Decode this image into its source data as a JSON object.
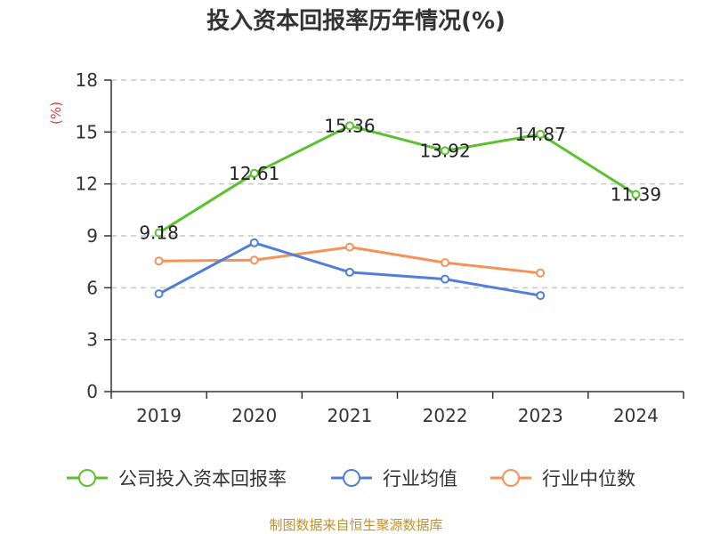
{
  "chart_data": {
    "type": "line",
    "title": "投入资本回报率历年情况(%)",
    "ylabel": "(%)",
    "xlabel": "",
    "categories": [
      "2019",
      "2020",
      "2021",
      "2022",
      "2023",
      "2024"
    ],
    "ylim": [
      0,
      18
    ],
    "yticks": [
      0,
      3,
      6,
      9,
      12,
      15,
      18
    ],
    "grid": true,
    "legend_position": "bottom",
    "series": [
      {
        "name": "公司投入资本回报率",
        "color": "#5cc12e",
        "values": [
          9.18,
          12.61,
          15.36,
          13.92,
          14.87,
          11.39
        ],
        "labels": [
          "9.18",
          "12.61",
          "15.36",
          "13.92",
          "14.87",
          "11.39"
        ]
      },
      {
        "name": "行业均值",
        "color": "#4f7fd8",
        "values": [
          5.65,
          8.6,
          6.9,
          6.5,
          5.55,
          null
        ]
      },
      {
        "name": "行业中位数",
        "color": "#f5925a",
        "values": [
          7.55,
          7.6,
          8.35,
          7.45,
          6.85,
          null
        ]
      }
    ],
    "source": "制图数据来自恒生聚源数据库"
  }
}
